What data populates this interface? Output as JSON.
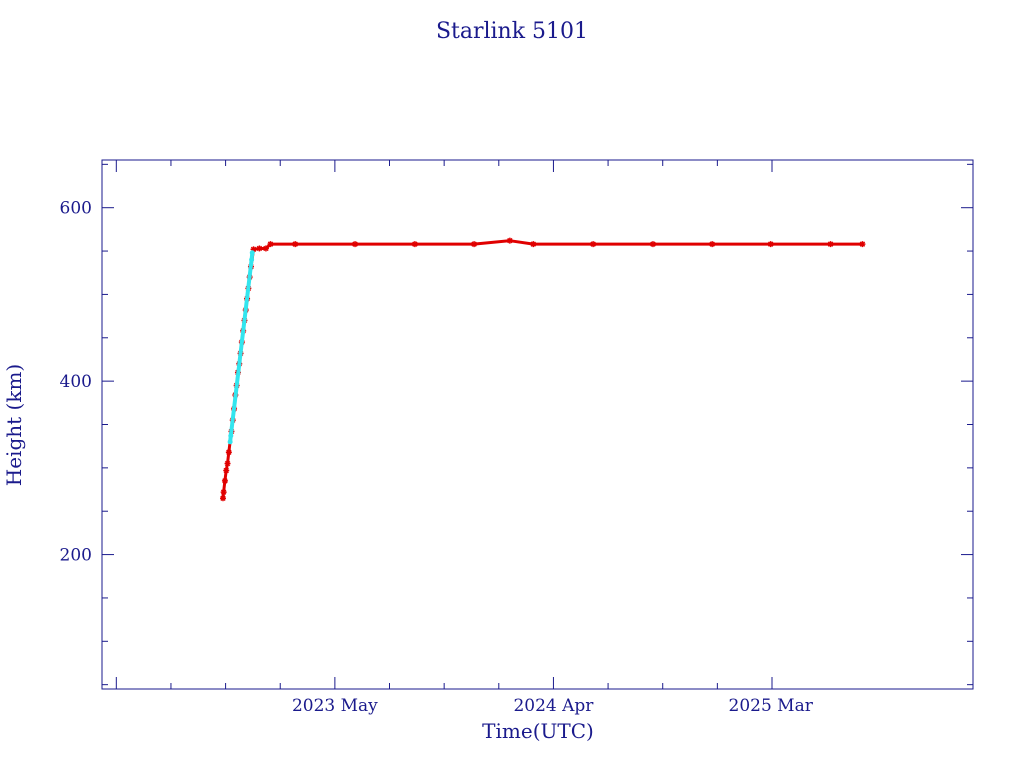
{
  "chart_data": {
    "type": "scatter",
    "title": "Starlink 5101",
    "xlabel": "Time(UTC)",
    "ylabel": "Height (km)",
    "ylim": [
      45,
      655
    ],
    "xlim": [
      "2022-05-08",
      "2026-01-06"
    ],
    "x_ticks": [
      {
        "label": "2023 May",
        "date": "2023-05-01"
      },
      {
        "label": "2024 Apr",
        "date": "2024-04-01"
      },
      {
        "label": "2025 Mar",
        "date": "2025-03-01"
      }
    ],
    "y_ticks": [
      200,
      400,
      600
    ],
    "grid": false,
    "colors": {
      "axes": "#1a1a8c",
      "series_main": "#e00000",
      "series_raising": "#33e5ee"
    },
    "series": [
      {
        "color": "#e00000",
        "marker": "asterisk",
        "points": [
          [
            "2022-11-10",
            265
          ],
          [
            "2022-11-11",
            272
          ],
          [
            "2022-11-13",
            285
          ],
          [
            "2022-11-15",
            297
          ],
          [
            "2022-11-17",
            305
          ],
          [
            "2022-11-19",
            318
          ],
          [
            "2022-11-23",
            342
          ],
          [
            "2022-11-25",
            355
          ],
          [
            "2022-11-27",
            368
          ],
          [
            "2022-11-29",
            384
          ],
          [
            "2022-12-01",
            395
          ],
          [
            "2022-12-03",
            410
          ],
          [
            "2022-12-05",
            420
          ],
          [
            "2022-12-07",
            432
          ],
          [
            "2022-12-09",
            445
          ],
          [
            "2022-12-11",
            458
          ],
          [
            "2022-12-13",
            470
          ],
          [
            "2022-12-15",
            482
          ],
          [
            "2022-12-17",
            495
          ],
          [
            "2022-12-19",
            507
          ],
          [
            "2022-12-21",
            520
          ],
          [
            "2022-12-23",
            532
          ],
          [
            "2022-12-27",
            552
          ],
          [
            "2023-01-05",
            553
          ],
          [
            "2023-01-15",
            553
          ],
          [
            "2023-01-22",
            558
          ],
          [
            "2023-03-01",
            558
          ],
          [
            "2023-06-01",
            558
          ],
          [
            "2023-09-01",
            558
          ],
          [
            "2023-12-01",
            558
          ],
          [
            "2024-01-25",
            562
          ],
          [
            "2024-03-01",
            558
          ],
          [
            "2024-06-01",
            558
          ],
          [
            "2024-09-01",
            558
          ],
          [
            "2024-12-01",
            558
          ],
          [
            "2025-03-01",
            558
          ],
          [
            "2025-06-01",
            558
          ],
          [
            "2025-07-20",
            558
          ]
        ]
      },
      {
        "color": "#33e5ee",
        "marker": "dot",
        "points": [
          [
            "2022-11-21",
            330
          ],
          [
            "2022-11-22",
            337
          ],
          [
            "2022-12-24",
            540
          ],
          [
            "2022-12-25",
            548
          ]
        ]
      }
    ]
  }
}
